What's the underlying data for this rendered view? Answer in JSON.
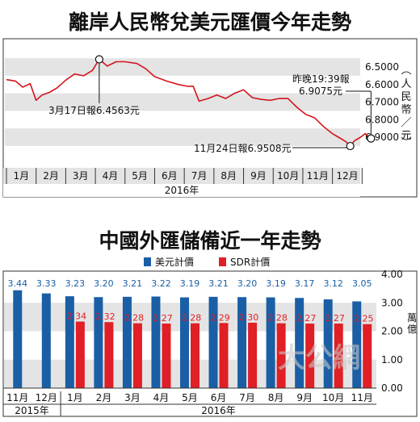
{
  "chart_data": [
    {
      "type": "line",
      "title": "離岸人民幣兌美元匯價今年走勢",
      "x_unit_label": "2016年",
      "x_tick_labels": [
        "1月",
        "2月",
        "3月",
        "4月",
        "5月",
        "6月",
        "7月",
        "8月",
        "9月",
        "10月",
        "11月",
        "12月"
      ],
      "y_tick_labels": [
        "6.5000",
        "6.6000",
        "6.7000",
        "6.8000",
        "6.9000"
      ],
      "ylabel": "人民幣／元",
      "ylim": [
        6.97,
        6.43
      ],
      "y_inverted": true,
      "grid": "alternating horizontal bands",
      "series": [
        {
          "values": [
            [
              0.0,
              6.572
            ],
            [
              0.3,
              6.58
            ],
            [
              0.55,
              6.615
            ],
            [
              0.8,
              6.595
            ],
            [
              1.0,
              6.69
            ],
            [
              1.2,
              6.66
            ],
            [
              1.45,
              6.645
            ],
            [
              1.7,
              6.62
            ],
            [
              2.0,
              6.575
            ],
            [
              2.3,
              6.54
            ],
            [
              2.6,
              6.55
            ],
            [
              2.9,
              6.52
            ],
            [
              3.13,
              6.4563
            ],
            [
              3.4,
              6.495
            ],
            [
              3.7,
              6.47
            ],
            [
              4.0,
              6.47
            ],
            [
              4.4,
              6.48
            ],
            [
              4.7,
              6.51
            ],
            [
              5.0,
              6.555
            ],
            [
              5.4,
              6.58
            ],
            [
              5.8,
              6.6
            ],
            [
              6.1,
              6.61
            ],
            [
              6.3,
              6.61
            ],
            [
              6.5,
              6.695
            ],
            [
              6.8,
              6.68
            ],
            [
              7.1,
              6.66
            ],
            [
              7.4,
              6.68
            ],
            [
              7.7,
              6.65
            ],
            [
              8.0,
              6.63
            ],
            [
              8.3,
              6.675
            ],
            [
              8.6,
              6.685
            ],
            [
              8.9,
              6.69
            ],
            [
              9.2,
              6.68
            ],
            [
              9.5,
              6.68
            ],
            [
              9.8,
              6.73
            ],
            [
              10.1,
              6.77
            ],
            [
              10.4,
              6.79
            ],
            [
              10.7,
              6.84
            ],
            [
              11.0,
              6.88
            ],
            [
              11.2,
              6.9
            ],
            [
              11.45,
              6.925
            ],
            [
              11.6,
              6.9508
            ],
            [
              11.75,
              6.92
            ],
            [
              11.95,
              6.9
            ],
            [
              12.1,
              6.88
            ],
            [
              12.3,
              6.9075
            ]
          ]
        }
      ],
      "annotations": [
        {
          "text": "3月17日報6.4563元",
          "x": 3.13,
          "y": 6.4563
        },
        {
          "text": "11月24日報6.9508元",
          "x": 11.6,
          "y": 6.9508
        },
        {
          "text": "昨晚19:39報",
          "x": 12.3,
          "y": 6.9075
        },
        {
          "text": "6.9075元",
          "x": 12.3,
          "y": 6.9075
        }
      ]
    },
    {
      "type": "bar",
      "title": "中國外匯儲備近一年走勢",
      "categories": [
        "11月",
        "12月",
        "1月",
        "2月",
        "3月",
        "4月",
        "5月",
        "6月",
        "7月",
        "8月",
        "9月",
        "10月",
        "11月"
      ],
      "year_labels": [
        "2015年",
        "2016年"
      ],
      "ylabel": "萬億",
      "ylim": [
        0,
        4
      ],
      "y_tick_labels": [
        "0.00",
        "1.00",
        "2.00",
        "3.00",
        "4.00"
      ],
      "legend_position": "top",
      "series": [
        {
          "name": "美元計價",
          "color": "#1a5fa6",
          "values": [
            3.44,
            3.33,
            3.23,
            3.2,
            3.21,
            3.22,
            3.19,
            3.21,
            3.2,
            3.19,
            3.17,
            3.12,
            3.05
          ]
        },
        {
          "name": "SDR計價",
          "color": "#e01f26",
          "values": [
            null,
            null,
            2.34,
            2.32,
            2.28,
            2.27,
            2.28,
            2.29,
            2.3,
            2.28,
            2.27,
            2.27,
            2.25
          ]
        }
      ],
      "watermark": "大公網"
    }
  ]
}
